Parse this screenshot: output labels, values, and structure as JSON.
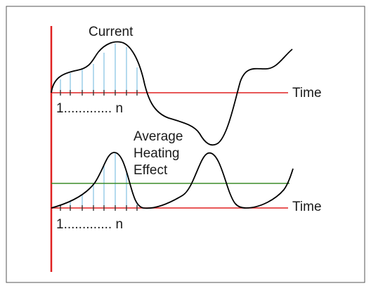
{
  "diagram": {
    "upper": {
      "wave_label": "Current",
      "axis_label": "Time",
      "interval_label": "1............. n"
    },
    "lower": {
      "caption_line1": "Average",
      "caption_line2": "Heating",
      "caption_line3": "Effect",
      "axis_label": "Time",
      "interval_label": "1............. n"
    },
    "colors": {
      "frame": "#555555",
      "vertical_axis": "#e02020",
      "time_axis": "#e02020",
      "curve": "#000000",
      "sample_lines": "#6ab4dc",
      "average_line": "#3c8c28"
    }
  }
}
